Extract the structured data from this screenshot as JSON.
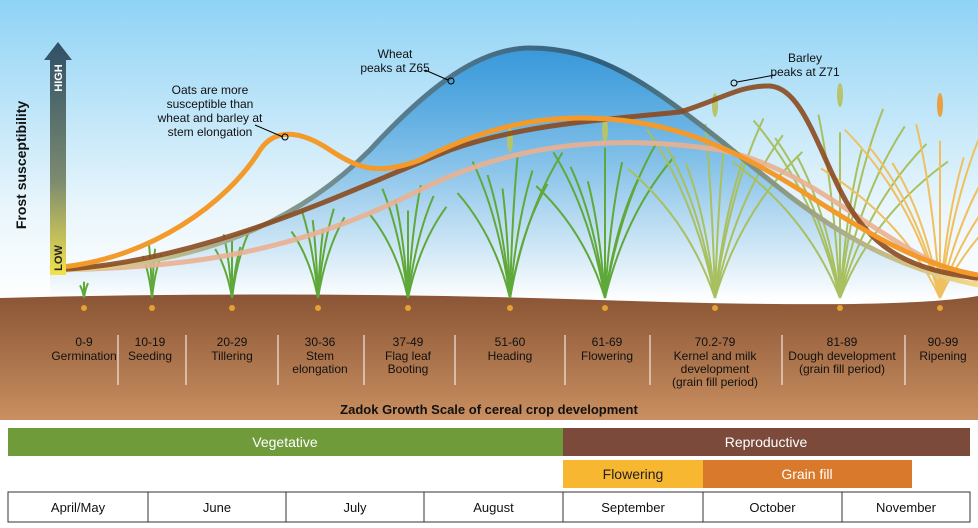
{
  "axis_label": "Frost susceptibility",
  "scale": {
    "high": "HIGH",
    "low": "LOW"
  },
  "annotations": {
    "oats": [
      "Oats are more",
      "susceptible than",
      "wheat and barley at",
      "stem elongation"
    ],
    "wheat": [
      "Wheat",
      "peaks at Z65"
    ],
    "barley": [
      "Barley",
      "peaks at Z71"
    ]
  },
  "stages": [
    {
      "code": "0-9",
      "label": [
        "Germination"
      ]
    },
    {
      "code": "10-19",
      "label": [
        "Seeding"
      ]
    },
    {
      "code": "20-29",
      "label": [
        "Tillering"
      ]
    },
    {
      "code": "30-36",
      "label": [
        "Stem",
        "elongation"
      ]
    },
    {
      "code": "37-49",
      "label": [
        "Flag leaf",
        "Booting"
      ]
    },
    {
      "code": "51-60",
      "label": [
        "Heading"
      ]
    },
    {
      "code": "61-69",
      "label": [
        "Flowering"
      ]
    },
    {
      "code": "70.2-79",
      "label": [
        "Kernel and milk",
        "development",
        "(grain fill period)"
      ]
    },
    {
      "code": "81-89",
      "label": [
        "Dough development",
        "(grain fill period)"
      ]
    },
    {
      "code": "90-99",
      "label": [
        "Ripening"
      ]
    }
  ],
  "scale_title": "Zadok Growth Scale of cereal crop development",
  "phases": [
    "Vegetative",
    "Reproductive"
  ],
  "subphases": [
    "Flowering",
    "Grain fill"
  ],
  "months": [
    "April/May",
    "June",
    "July",
    "August",
    "September",
    "October",
    "November"
  ]
}
